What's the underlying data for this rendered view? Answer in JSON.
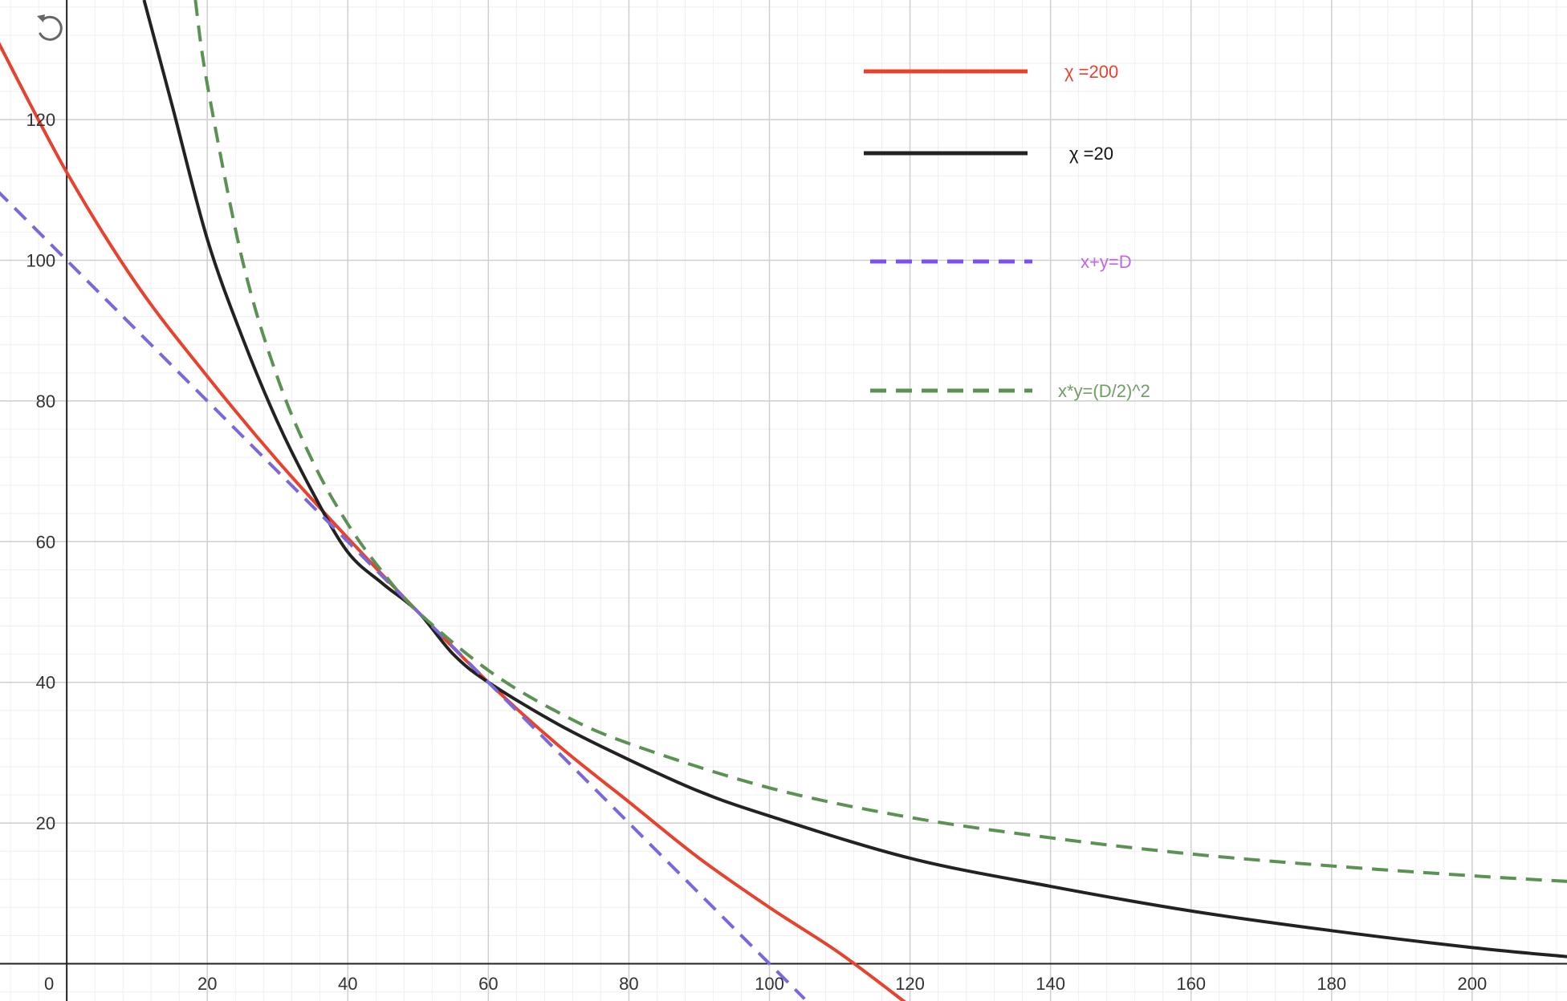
{
  "chart_data": {
    "type": "line",
    "xlim": [
      -9.5,
      213.5
    ],
    "ylim": [
      -5.3,
      137.0
    ],
    "grid": true,
    "minor_grid_step": 4,
    "major_grid_step": 20,
    "x_ticks": [
      {
        "value": 0,
        "label": "0"
      },
      {
        "value": 20,
        "label": "20"
      },
      {
        "value": 40,
        "label": "40"
      },
      {
        "value": 60,
        "label": "60"
      },
      {
        "value": 80,
        "label": "80"
      },
      {
        "value": 100,
        "label": "100"
      },
      {
        "value": 120,
        "label": "120"
      },
      {
        "value": 140,
        "label": "140"
      },
      {
        "value": 160,
        "label": "160"
      },
      {
        "value": 180,
        "label": "180"
      },
      {
        "value": 200,
        "label": "200"
      }
    ],
    "y_ticks": [
      {
        "value": 20,
        "label": "20"
      },
      {
        "value": 40,
        "label": "40"
      },
      {
        "value": 60,
        "label": "60"
      },
      {
        "value": 80,
        "label": "80"
      },
      {
        "value": 100,
        "label": "100"
      },
      {
        "value": 120,
        "label": "120"
      }
    ],
    "legend_position": "top-right",
    "series": [
      {
        "name": "χ =200",
        "color": "#e8412d",
        "dash": "solid",
        "points": [
          [
            -10,
            131.5
          ],
          [
            0,
            112.5
          ],
          [
            10,
            96.5
          ],
          [
            20,
            83.5
          ],
          [
            30,
            71.5
          ],
          [
            40,
            60.5
          ],
          [
            50,
            50
          ],
          [
            60,
            40
          ],
          [
            70,
            31
          ],
          [
            80,
            23
          ],
          [
            90,
            15
          ],
          [
            100,
            8
          ],
          [
            110,
            1.5
          ],
          [
            120,
            -6
          ]
        ]
      },
      {
        "name": "χ =20",
        "color": "#222222",
        "dash": "solid",
        "points": [
          [
            11,
            137
          ],
          [
            15,
            122
          ],
          [
            20,
            103
          ],
          [
            25,
            89
          ],
          [
            30,
            77
          ],
          [
            35,
            67
          ],
          [
            40,
            58.5
          ],
          [
            45,
            54
          ],
          [
            50,
            50
          ],
          [
            55,
            44
          ],
          [
            60,
            40
          ],
          [
            70,
            34
          ],
          [
            80,
            29
          ],
          [
            90,
            24.5
          ],
          [
            100,
            21
          ],
          [
            120,
            15
          ],
          [
            140,
            11
          ],
          [
            160,
            7.5
          ],
          [
            180,
            4.7
          ],
          [
            200,
            2.3
          ],
          [
            213.5,
            1
          ]
        ]
      },
      {
        "name": "x+y=D",
        "color": "#7b68d8",
        "dash": "dashed",
        "points": [
          [
            -10,
            110
          ],
          [
            105,
            -5
          ]
        ]
      },
      {
        "name": "x*y=(D/2)^2",
        "color": "#5b9254",
        "dash": "dashed",
        "points": [
          [
            18.3,
            137
          ],
          [
            20,
            125
          ],
          [
            25,
            100
          ],
          [
            30,
            83.3
          ],
          [
            35,
            71.4
          ],
          [
            40,
            62.5
          ],
          [
            45,
            55.6
          ],
          [
            50,
            50
          ],
          [
            60,
            41.7
          ],
          [
            70,
            35.7
          ],
          [
            80,
            31.3
          ],
          [
            100,
            25
          ],
          [
            120,
            20.8
          ],
          [
            140,
            17.9
          ],
          [
            160,
            15.6
          ],
          [
            180,
            13.9
          ],
          [
            200,
            12.5
          ],
          [
            213.5,
            11.7
          ]
        ]
      }
    ],
    "legend": [
      {
        "label": "χ =200",
        "color": "#e8412d",
        "text_color": "#e8412d",
        "dash": "solid"
      },
      {
        "label": "χ =20",
        "color": "#222222",
        "text_color": "#111111",
        "dash": "solid"
      },
      {
        "label": "x+y=D",
        "color": "#7b4ff2",
        "text_color": "#c464e6",
        "dash": "dashed"
      },
      {
        "label": "x*y=(D/2)^2",
        "color": "#5b9254",
        "text_color": "#6f9d62",
        "dash": "dashed"
      }
    ]
  },
  "controls": {
    "reset_icon": "undo-arrow-icon"
  }
}
